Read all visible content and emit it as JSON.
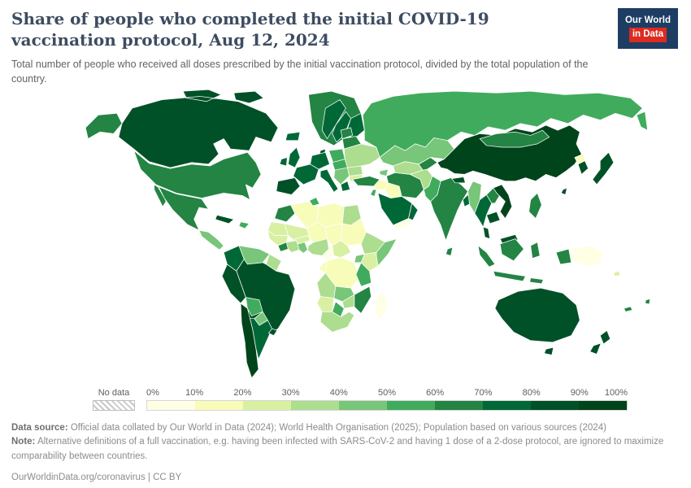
{
  "logo": {
    "line1": "Our World",
    "line2": "in Data",
    "bg_color": "#1d3d63",
    "accent_color": "#dc2b20"
  },
  "header": {
    "title": "Share of people who completed the initial COVID-19 vaccination protocol, Aug 12, 2024",
    "subtitle": "Total number of people who received all doses prescribed by the initial vaccination protocol, divided by the total population of the country."
  },
  "legend": {
    "no_data_label": "No data",
    "tick_labels": [
      "0%",
      "10%",
      "20%",
      "30%",
      "40%",
      "50%",
      "60%",
      "70%",
      "80%",
      "90%",
      "100%"
    ],
    "bin_colors": [
      "#ffffe5",
      "#f7fcb9",
      "#d9f0a3",
      "#addd8e",
      "#78c679",
      "#41ab5d",
      "#238443",
      "#006837",
      "#005127",
      "#00441b"
    ]
  },
  "footer": {
    "data_source_label": "Data source:",
    "data_source_text": " Official data collated by Our World in Data (2024); World Health Organisation (2025); Population based on various sources (2024)",
    "note_label": "Note:",
    "note_text": " Alternative definitions of a full vaccination, e.g. having been infected with SARS-CoV-2 and having 1 dose of a 2-dose protocol, are ignored to maximize comparability between countries.",
    "citation_link": "OurWorldinData.org/coronavirus",
    "citation_separator": " | ",
    "citation_license": "CC BY"
  },
  "chart_data": {
    "type": "heatmap",
    "subtype": "choropleth-world-map",
    "title": "Share of people who completed the initial COVID-19 vaccination protocol",
    "date": "Aug 12, 2024",
    "unit": "% of total population",
    "color_scale": {
      "palette": "YlGn",
      "domain": [
        0,
        100
      ],
      "bin_size": 10,
      "bin_colors": [
        "#ffffe5",
        "#f7fcb9",
        "#d9f0a3",
        "#addd8e",
        "#78c679",
        "#41ab5d",
        "#238443",
        "#006837",
        "#005127",
        "#00441b"
      ],
      "no_data_style": "diagonal-hatch"
    },
    "regions": [
      {
        "id": "canada",
        "name": "Canada",
        "value": 84,
        "color": "#005127"
      },
      {
        "id": "usa",
        "name": "United States",
        "value": 68,
        "color": "#238443"
      },
      {
        "id": "greenland",
        "name": "Greenland",
        "value": 67,
        "color": "#238443"
      },
      {
        "id": "mexico",
        "name": "Mexico",
        "value": 64,
        "color": "#238443"
      },
      {
        "id": "central-america",
        "name": "Central America",
        "value": 46,
        "color": "#78c679"
      },
      {
        "id": "cuba",
        "name": "Cuba",
        "value": 88,
        "color": "#005127"
      },
      {
        "id": "hispaniola",
        "name": "Dominican Republic / Haiti",
        "value": 55,
        "color": "#41ab5d"
      },
      {
        "id": "colombia",
        "name": "Colombia",
        "value": 72,
        "color": "#006837"
      },
      {
        "id": "venezuela",
        "name": "Venezuela",
        "value": 48,
        "color": "#78c679"
      },
      {
        "id": "guyana",
        "name": "Guyana / Suriname",
        "value": 38,
        "color": "#addd8e"
      },
      {
        "id": "brazil",
        "name": "Brazil",
        "value": 81,
        "color": "#005127"
      },
      {
        "id": "peru",
        "name": "Peru",
        "value": 84,
        "color": "#005127"
      },
      {
        "id": "bolivia",
        "name": "Bolivia",
        "value": 52,
        "color": "#41ab5d"
      },
      {
        "id": "paraguay",
        "name": "Paraguay",
        "value": 44,
        "color": "#78c679"
      },
      {
        "id": "chile",
        "name": "Chile",
        "value": 92,
        "color": "#00441b"
      },
      {
        "id": "argentina",
        "name": "Argentina",
        "value": 78,
        "color": "#006837"
      },
      {
        "id": "uruguay",
        "name": "Uruguay",
        "value": 80,
        "color": "#005127"
      },
      {
        "id": "iceland",
        "name": "Iceland",
        "value": 78,
        "color": "#006837"
      },
      {
        "id": "uk",
        "name": "United Kingdom",
        "value": 75,
        "color": "#006837"
      },
      {
        "id": "ireland",
        "name": "Ireland",
        "value": 77,
        "color": "#006837"
      },
      {
        "id": "norway",
        "name": "Norway",
        "value": 74,
        "color": "#006837"
      },
      {
        "id": "sweden",
        "name": "Sweden",
        "value": 72,
        "color": "#006837"
      },
      {
        "id": "finland",
        "name": "Finland",
        "value": 75,
        "color": "#006837"
      },
      {
        "id": "denmark",
        "name": "Denmark",
        "value": 81,
        "color": "#005127"
      },
      {
        "id": "germany",
        "name": "Germany / Central Europe",
        "value": 76,
        "color": "#006837"
      },
      {
        "id": "france",
        "name": "France",
        "value": 78,
        "color": "#006837"
      },
      {
        "id": "spain",
        "name": "Spain / Portugal",
        "value": 86,
        "color": "#005127"
      },
      {
        "id": "italy",
        "name": "Italy",
        "value": 79,
        "color": "#006837"
      },
      {
        "id": "poland",
        "name": "Poland",
        "value": 57,
        "color": "#41ab5d"
      },
      {
        "id": "czechia",
        "name": "Czechia / Slovakia / Hungary",
        "value": 58,
        "color": "#41ab5d"
      },
      {
        "id": "balkans",
        "name": "Western Balkans",
        "value": 45,
        "color": "#78c679"
      },
      {
        "id": "greece",
        "name": "Greece",
        "value": 73,
        "color": "#006837"
      },
      {
        "id": "romania",
        "name": "Romania",
        "value": 35,
        "color": "#addd8e"
      },
      {
        "id": "bulgaria",
        "name": "Bulgaria",
        "value": 30,
        "color": "#d9f0a3"
      },
      {
        "id": "ukraine",
        "name": "Ukraine",
        "value": 34,
        "color": "#addd8e"
      },
      {
        "id": "belarus",
        "name": "Belarus",
        "value": 67,
        "color": "#238443"
      },
      {
        "id": "baltics",
        "name": "Baltic states",
        "value": 63,
        "color": "#238443"
      },
      {
        "id": "russia",
        "name": "Russia",
        "value": 55,
        "color": "#41ab5d"
      },
      {
        "id": "turkey",
        "name": "Turkey",
        "value": 62,
        "color": "#238443"
      },
      {
        "id": "caucasus",
        "name": "Caucasus",
        "value": 42,
        "color": "#78c679"
      },
      {
        "id": "syria",
        "name": "Syria",
        "value": 14,
        "color": "#f7fcb9"
      },
      {
        "id": "iraq",
        "name": "Iraq",
        "value": 19,
        "color": "#f7fcb9"
      },
      {
        "id": "jordan-israel",
        "name": "Israel / Jordan",
        "value": 52,
        "color": "#41ab5d"
      },
      {
        "id": "saudi-arabia",
        "name": "Saudi Arabia",
        "value": 72,
        "color": "#006837"
      },
      {
        "id": "yemen",
        "name": "Yemen",
        "value": 4,
        "color": "#ffffe5"
      },
      {
        "id": "oman",
        "name": "Oman",
        "value": 70,
        "color": "#006837"
      },
      {
        "id": "iran",
        "name": "Iran",
        "value": 66,
        "color": "#238443"
      },
      {
        "id": "kazakhstan",
        "name": "Kazakhstan",
        "value": 49,
        "color": "#78c679"
      },
      {
        "id": "uzbekistan-turkmenistan",
        "name": "Uzbekistan / Turkmenistan",
        "value": 38,
        "color": "#addd8e"
      },
      {
        "id": "kyrgyzstan-tajikistan",
        "name": "Kyrgyzstan / Tajikistan",
        "value": 62,
        "color": "#238443"
      },
      {
        "id": "afghanistan",
        "name": "Afghanistan",
        "value": 33,
        "color": "#addd8e"
      },
      {
        "id": "pakistan",
        "name": "Pakistan",
        "value": 58,
        "color": "#41ab5d"
      },
      {
        "id": "india",
        "name": "India",
        "value": 67,
        "color": "#238443"
      },
      {
        "id": "nepal",
        "name": "Nepal",
        "value": 80,
        "color": "#005127"
      },
      {
        "id": "bangladesh",
        "name": "Bangladesh",
        "value": 74,
        "color": "#006837"
      },
      {
        "id": "sri-lanka",
        "name": "Sri Lanka",
        "value": 68,
        "color": "#238443"
      },
      {
        "id": "china",
        "name": "China",
        "value": 91,
        "color": "#00441b"
      },
      {
        "id": "mongolia",
        "name": "Mongolia",
        "value": 66,
        "color": "#238443"
      },
      {
        "id": "north-korea",
        "name": "North Korea",
        "value": 12,
        "color": "#f7fcb9"
      },
      {
        "id": "south-korea",
        "name": "South Korea",
        "value": 86,
        "color": "#005127"
      },
      {
        "id": "japan",
        "name": "Japan",
        "value": 83,
        "color": "#005127"
      },
      {
        "id": "taiwan",
        "name": "Taiwan",
        "value": 82,
        "color": "#005127"
      },
      {
        "id": "myanmar",
        "name": "Myanmar",
        "value": 48,
        "color": "#78c679"
      },
      {
        "id": "thailand",
        "name": "Thailand",
        "value": 77,
        "color": "#006837"
      },
      {
        "id": "laos",
        "name": "Laos",
        "value": 68,
        "color": "#238443"
      },
      {
        "id": "vietnam",
        "name": "Vietnam",
        "value": 90,
        "color": "#00441b"
      },
      {
        "id": "cambodia",
        "name": "Cambodia",
        "value": 85,
        "color": "#005127"
      },
      {
        "id": "malaysia",
        "name": "Malaysia",
        "value": 82,
        "color": "#005127"
      },
      {
        "id": "philippines",
        "name": "Philippines",
        "value": 62,
        "color": "#238443"
      },
      {
        "id": "indonesia",
        "name": "Indonesia",
        "value": 63,
        "color": "#238443"
      },
      {
        "id": "papua-new-guinea",
        "name": "Papua New Guinea",
        "value": 3,
        "color": "#ffffe5"
      },
      {
        "id": "solomon-islands",
        "name": "Solomon Islands",
        "value": 28,
        "color": "#d9f0a3"
      },
      {
        "id": "fiji",
        "name": "Fiji",
        "value": 69,
        "color": "#238443"
      },
      {
        "id": "new-caledonia",
        "name": "New Caledonia",
        "value": 65,
        "color": "#238443"
      },
      {
        "id": "australia",
        "name": "Australia",
        "value": 84,
        "color": "#005127"
      },
      {
        "id": "new-zealand",
        "name": "New Zealand",
        "value": 80,
        "color": "#005127"
      },
      {
        "id": "morocco",
        "name": "Morocco",
        "value": 63,
        "color": "#238443"
      },
      {
        "id": "mauritania",
        "name": "Mauritania / Western Sahara",
        "value": 25,
        "color": "#d9f0a3"
      },
      {
        "id": "algeria",
        "name": "Algeria",
        "value": 16,
        "color": "#f7fcb9"
      },
      {
        "id": "tunisia",
        "name": "Tunisia",
        "value": 52,
        "color": "#41ab5d"
      },
      {
        "id": "libya",
        "name": "Libya",
        "value": 17,
        "color": "#f7fcb9"
      },
      {
        "id": "egypt",
        "name": "Egypt",
        "value": 36,
        "color": "#addd8e"
      },
      {
        "id": "mali",
        "name": "Mali",
        "value": 26,
        "color": "#d9f0a3"
      },
      {
        "id": "niger",
        "name": "Niger",
        "value": 18,
        "color": "#f7fcb9"
      },
      {
        "id": "chad",
        "name": "Chad",
        "value": 13,
        "color": "#f7fcb9"
      },
      {
        "id": "sudan",
        "name": "Sudan",
        "value": 16,
        "color": "#f7fcb9"
      },
      {
        "id": "senegal-guinea",
        "name": "Senegal / Guinea",
        "value": 28,
        "color": "#d9f0a3"
      },
      {
        "id": "liberia-sierra-leone",
        "name": "Liberia / Sierra Leone",
        "value": 62,
        "color": "#238443"
      },
      {
        "id": "cote-divoire",
        "name": "Côte d'Ivoire",
        "value": 35,
        "color": "#addd8e"
      },
      {
        "id": "ghana",
        "name": "Ghana",
        "value": 44,
        "color": "#78c679"
      },
      {
        "id": "burkina-faso",
        "name": "Burkina Faso",
        "value": 28,
        "color": "#d9f0a3"
      },
      {
        "id": "nigeria",
        "name": "Nigeria",
        "value": 36,
        "color": "#addd8e"
      },
      {
        "id": "cameroon",
        "name": "Cameroon",
        "value": 5,
        "color": "#ffffe5"
      },
      {
        "id": "central-african-republic",
        "name": "Central African Republic",
        "value": 24,
        "color": "#d9f0a3"
      },
      {
        "id": "ethiopia",
        "name": "Ethiopia",
        "value": 34,
        "color": "#addd8e"
      },
      {
        "id": "somalia",
        "name": "Somalia",
        "value": 42,
        "color": "#78c679"
      },
      {
        "id": "kenya",
        "name": "Kenya",
        "value": 27,
        "color": "#d9f0a3"
      },
      {
        "id": "uganda",
        "name": "Uganda",
        "value": 45,
        "color": "#78c679"
      },
      {
        "id": "dr-congo",
        "name": "Democratic Republic of Congo",
        "value": 11,
        "color": "#f7fcb9"
      },
      {
        "id": "congo-gabon",
        "name": "Congo / Gabon",
        "value": 13,
        "color": "#f7fcb9"
      },
      {
        "id": "tanzania",
        "name": "Tanzania",
        "value": 51,
        "color": "#41ab5d"
      },
      {
        "id": "angola",
        "name": "Angola",
        "value": 33,
        "color": "#addd8e"
      },
      {
        "id": "zambia",
        "name": "Zambia",
        "value": 48,
        "color": "#78c679"
      },
      {
        "id": "mozambique",
        "name": "Mozambique",
        "value": 66,
        "color": "#238443"
      },
      {
        "id": "zimbabwe",
        "name": "Zimbabwe",
        "value": 35,
        "color": "#addd8e"
      },
      {
        "id": "namibia",
        "name": "Namibia",
        "value": 26,
        "color": "#d9f0a3"
      },
      {
        "id": "botswana",
        "name": "Botswana",
        "value": 53,
        "color": "#41ab5d"
      },
      {
        "id": "south-africa",
        "name": "South Africa",
        "value": 33,
        "color": "#addd8e"
      },
      {
        "id": "madagascar",
        "name": "Madagascar",
        "value": 9,
        "color": "#ffffe5"
      }
    ]
  }
}
